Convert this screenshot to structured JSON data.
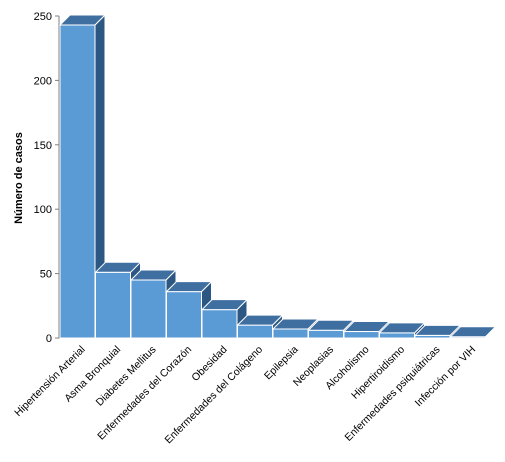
{
  "chart_data": {
    "type": "bar",
    "style": "3d-column",
    "categories": [
      "Hipertensión Arterial",
      "Asma Bronquial",
      "Diabetes Mellitus",
      "Enfermedades del Corazón",
      "Obesidad",
      "Enfermedades del Colágeno",
      "Epilepsia",
      "Neoplasias",
      "Alcoholismo",
      "Hipertiroidismo",
      "Enfermedades psiquiátricas",
      "Infección por VIH"
    ],
    "values": [
      243,
      51,
      45,
      36,
      22,
      10,
      7,
      6,
      5,
      4,
      2,
      1
    ],
    "title": "",
    "xlabel": "",
    "ylabel": "Número de casos",
    "ylim": [
      0,
      250
    ],
    "yticks": [
      0,
      50,
      100,
      150,
      200,
      250
    ],
    "grid": false,
    "legend": "none",
    "colors": {
      "front": "#5B9BD5",
      "top": "#3F6FA0",
      "side": "#2C5782",
      "edge": "#FFFFFF",
      "axis": "#808080"
    }
  }
}
